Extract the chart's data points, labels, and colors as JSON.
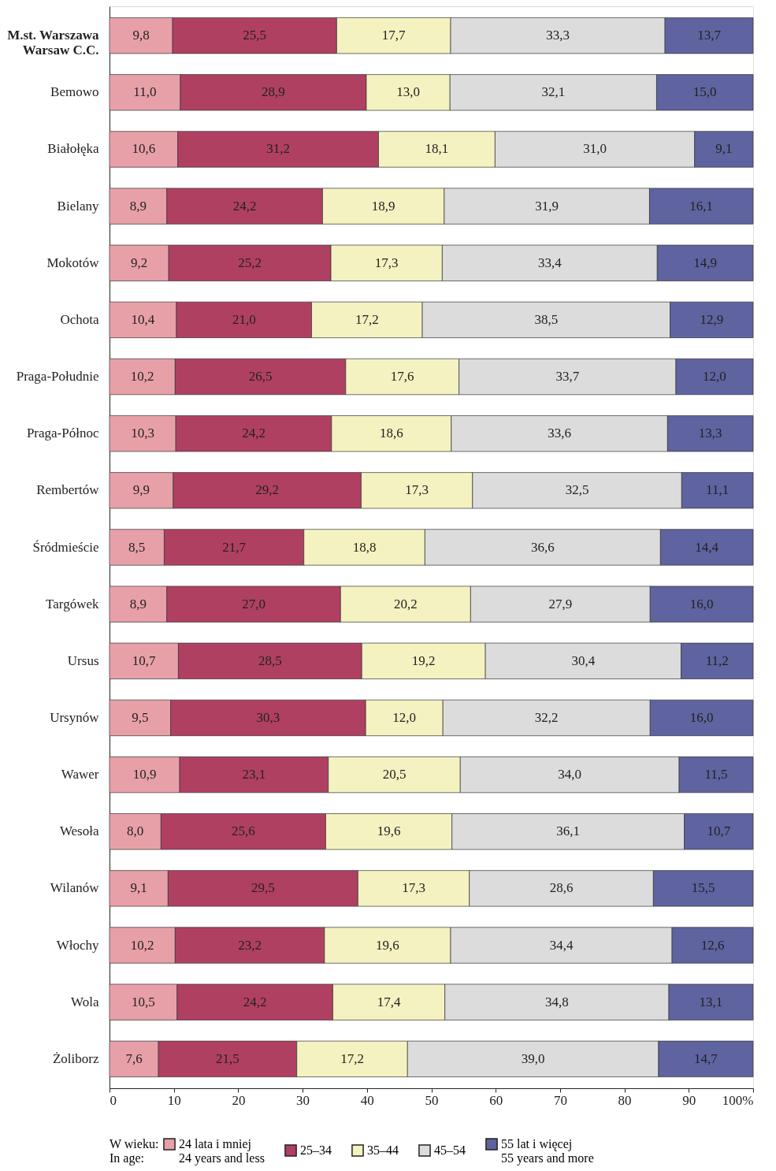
{
  "chart_data": {
    "type": "bar",
    "orientation": "horizontal",
    "stacked": true,
    "grid": false,
    "legend": "bottom",
    "legend_title": "W wieku:\nIn age:",
    "categories": [
      "M.st. Warszawa\nWarsaw C.C.",
      "Bemowo",
      "Białołęka",
      "Bielany",
      "Mokotów",
      "Ochota",
      "Praga-Południe",
      "Praga-Północ",
      "Rembertów",
      "Śródmieście",
      "Targówek",
      "Ursus",
      "Ursynów",
      "Wawer",
      "Wesoła",
      "Wilanów",
      "Włochy",
      "Wola",
      "Żoliborz"
    ],
    "xlim": [
      0,
      100
    ],
    "xticks": [
      0,
      10,
      20,
      30,
      40,
      50,
      60,
      70,
      80,
      90,
      {
        "value": 100,
        "label": "100%"
      }
    ],
    "series": [
      {
        "name": "24 lata i mniej\n24 years and less",
        "color": "#e8a0a8",
        "values": [
          9.8,
          11.0,
          10.6,
          8.9,
          9.2,
          10.4,
          10.2,
          10.3,
          9.9,
          8.5,
          8.9,
          10.7,
          9.5,
          10.9,
          8.0,
          9.1,
          10.2,
          10.5,
          7.6
        ],
        "value_labels": [
          "9,8",
          "11,0",
          "10,6",
          "8,9",
          "9,2",
          "10,4",
          "10,2",
          "10,3",
          "9,9",
          "8,5",
          "8,9",
          "10,7",
          "9,5",
          "10,9",
          "8,0",
          "9,1",
          "10,2",
          "10,5",
          "7,6"
        ]
      },
      {
        "name": "25–34",
        "color": "#b04062",
        "values": [
          25.5,
          28.9,
          31.2,
          24.2,
          25.2,
          21.0,
          26.5,
          24.2,
          29.2,
          21.7,
          27.0,
          28.5,
          30.3,
          23.1,
          25.6,
          29.5,
          23.2,
          24.2,
          21.5
        ],
        "value_labels": [
          "25,5",
          "28,9",
          "31,2",
          "24,2",
          "25,2",
          "21,0",
          "26,5",
          "24,2",
          "29,2",
          "21,7",
          "27,0",
          "28,5",
          "30,3",
          "23,1",
          "25,6",
          "29,5",
          "23,2",
          "24,2",
          "21,5"
        ]
      },
      {
        "name": "35–44",
        "color": "#f4f2c0",
        "values": [
          17.7,
          13.0,
          18.1,
          18.9,
          17.3,
          17.2,
          17.6,
          18.6,
          17.3,
          18.8,
          20.2,
          19.2,
          12.0,
          20.5,
          19.6,
          17.3,
          19.6,
          17.4,
          17.2
        ],
        "value_labels": [
          "17,7",
          "13,0",
          "18,1",
          "18,9",
          "17,3",
          "17,2",
          "17,6",
          "18,6",
          "17,3",
          "18,8",
          "20,2",
          "19,2",
          "12,0",
          "20,5",
          "19,6",
          "17,3",
          "19,6",
          "17,4",
          "17,2"
        ]
      },
      {
        "name": "45–54",
        "color": "#dcdcdc",
        "values": [
          33.3,
          32.1,
          31.0,
          31.9,
          33.4,
          38.5,
          33.7,
          33.6,
          32.5,
          36.6,
          27.9,
          30.4,
          32.2,
          34.0,
          36.1,
          28.6,
          34.4,
          34.8,
          39.0
        ],
        "value_labels": [
          "33,3",
          "32,1",
          "31,0",
          "31,9",
          "33,4",
          "38,5",
          "33,7",
          "33,6",
          "32,5",
          "36,6",
          "27,9",
          "30,4",
          "32,2",
          "34,0",
          "36,1",
          "28,6",
          "34,4",
          "34,8",
          "39,0"
        ]
      },
      {
        "name": "55 lat i więcej\n55 years and more",
        "color": "#5f63a0",
        "values": [
          13.7,
          15.0,
          9.1,
          16.1,
          14.9,
          12.9,
          12.0,
          13.3,
          11.1,
          14.4,
          16.0,
          11.2,
          16.0,
          11.5,
          10.7,
          15.5,
          12.6,
          13.1,
          14.7
        ],
        "value_labels": [
          "13,7",
          "15,0",
          "9,1",
          "16,1",
          "14,9",
          "12,9",
          "12,0",
          "13,3",
          "11,1",
          "14,4",
          "16,0",
          "11,2",
          "16,0",
          "11,5",
          "10,7",
          "15,5",
          "12,6",
          "13,1",
          "14,7"
        ]
      }
    ]
  }
}
